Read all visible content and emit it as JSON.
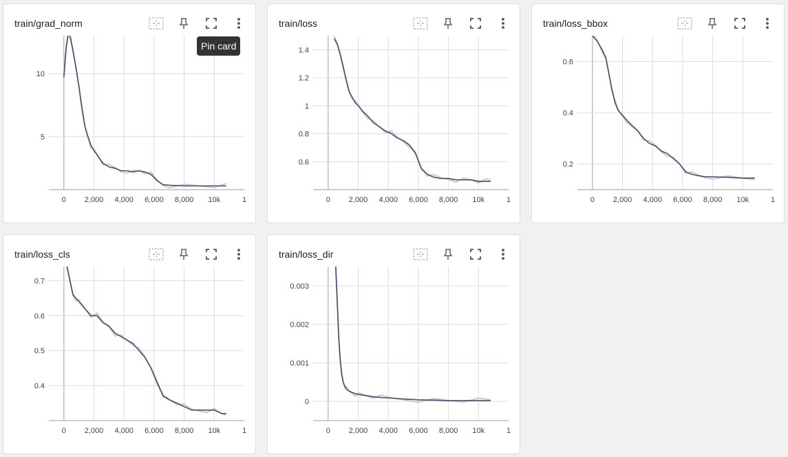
{
  "tooltip": "Pin card",
  "colors": {
    "line": "#425066",
    "line_raw": "#c5cbd6",
    "grid": "#dadce0",
    "axis": "#9e9e9e"
  },
  "icons": [
    "fit-domain-icon",
    "pin-icon",
    "fullscreen-icon",
    "more-vert-icon"
  ],
  "cards": [
    {
      "title": "train/grad_norm",
      "chart_data": {
        "type": "line",
        "x_ticks": [
          "0",
          "2,000",
          "4,000",
          "6,000",
          "8,000",
          "10k",
          "1"
        ],
        "y_ticks": [
          "5",
          "10"
        ],
        "xlim": [
          -1000,
          12000
        ],
        "ylim": [
          0.8,
          13
        ],
        "series": [
          {
            "x": [
              0,
              150,
              300,
              450,
              600,
              800,
              1000,
              1200,
              1400,
              1600,
              1800,
              2000,
              2300,
              2600,
              3000,
              3400,
              3800,
              4200,
              4600,
              5000,
              5400,
              5800,
              6200,
              6600,
              7000,
              8000,
              9000,
              10000,
              10800
            ],
            "y": [
              9.7,
              12.0,
              13.3,
              12.8,
              11.8,
              10.5,
              9.0,
              7.2,
              5.8,
              5.0,
              4.3,
              3.9,
              3.4,
              2.9,
              2.6,
              2.5,
              2.3,
              2.3,
              2.2,
              2.3,
              2.2,
              2.0,
              1.5,
              1.2,
              1.15,
              1.1,
              1.1,
              1.1,
              1.1
            ]
          }
        ]
      }
    },
    {
      "title": "train/loss",
      "chart_data": {
        "type": "line",
        "x_ticks": [
          "0",
          "2,000",
          "4,000",
          "6,000",
          "8,000",
          "10k",
          "1"
        ],
        "y_ticks": [
          "0.6",
          "0.8",
          "1",
          "1.2",
          "1.4"
        ],
        "xlim": [
          -1000,
          12000
        ],
        "ylim": [
          0.4,
          1.5
        ],
        "series": [
          {
            "x": [
              400,
              600,
              800,
              1000,
              1200,
              1400,
              1600,
              1800,
              2000,
              2300,
              2600,
              3000,
              3400,
              3800,
              4200,
              4600,
              5000,
              5400,
              5800,
              6200,
              6600,
              7000,
              7500,
              8000,
              8500,
              9000,
              9500,
              10000,
              10500,
              10800
            ],
            "y": [
              1.48,
              1.44,
              1.37,
              1.28,
              1.18,
              1.1,
              1.06,
              1.02,
              1.0,
              0.96,
              0.93,
              0.88,
              0.85,
              0.82,
              0.8,
              0.77,
              0.75,
              0.72,
              0.66,
              0.55,
              0.51,
              0.49,
              0.48,
              0.48,
              0.47,
              0.47,
              0.47,
              0.46,
              0.46,
              0.46
            ]
          }
        ]
      }
    },
    {
      "title": "train/loss_bbox",
      "chart_data": {
        "type": "line",
        "x_ticks": [
          "0",
          "2,000",
          "4,000",
          "6,000",
          "8,000",
          "10k",
          "1"
        ],
        "y_ticks": [
          "0.2",
          "0.4",
          "0.6"
        ],
        "xlim": [
          -1000,
          12000
        ],
        "ylim": [
          0.1,
          0.7
        ],
        "series": [
          {
            "x": [
              0,
              300,
              500,
              700,
              900,
              1100,
              1300,
              1500,
              1700,
              2000,
              2300,
              2600,
              3000,
              3400,
              3800,
              4200,
              4600,
              5000,
              5400,
              5800,
              6200,
              6600,
              7000,
              7500,
              8000,
              9000,
              10000,
              10800
            ],
            "y": [
              0.7,
              0.68,
              0.66,
              0.64,
              0.61,
              0.55,
              0.49,
              0.44,
              0.41,
              0.39,
              0.37,
              0.35,
              0.33,
              0.3,
              0.28,
              0.27,
              0.25,
              0.24,
              0.22,
              0.2,
              0.17,
              0.16,
              0.155,
              0.15,
              0.15,
              0.148,
              0.145,
              0.145
            ]
          }
        ]
      }
    },
    {
      "title": "train/loss_cls",
      "chart_data": {
        "type": "line",
        "x_ticks": [
          "0",
          "2,000",
          "4,000",
          "6,000",
          "8,000",
          "10k",
          "1"
        ],
        "y_ticks": [
          "0.4",
          "0.5",
          "0.6",
          "0.7"
        ],
        "xlim": [
          -1000,
          12000
        ],
        "ylim": [
          0.3,
          0.74
        ],
        "series": [
          {
            "x": [
              200,
              400,
              600,
              800,
              1000,
              1400,
              1800,
              2200,
              2600,
              3000,
              3400,
              3800,
              4200,
              4600,
              5000,
              5400,
              5800,
              6200,
              6600,
              7000,
              7500,
              8000,
              8500,
              9000,
              9500,
              10000,
              10500,
              10800
            ],
            "y": [
              0.74,
              0.7,
              0.66,
              0.65,
              0.64,
              0.62,
              0.6,
              0.6,
              0.58,
              0.57,
              0.55,
              0.54,
              0.53,
              0.52,
              0.5,
              0.48,
              0.45,
              0.41,
              0.37,
              0.36,
              0.35,
              0.34,
              0.33,
              0.33,
              0.33,
              0.33,
              0.32,
              0.32
            ]
          }
        ]
      }
    },
    {
      "title": "train/loss_dir",
      "chart_data": {
        "type": "line",
        "x_ticks": [
          "0",
          "2,000",
          "4,000",
          "6,000",
          "8,000",
          "10k",
          "1"
        ],
        "y_ticks": [
          "0",
          "0.001",
          "0.002",
          "0.003"
        ],
        "xlim": [
          -1000,
          12000
        ],
        "ylim": [
          -0.0005,
          0.0035
        ],
        "series": [
          {
            "x": [
              500,
              600,
              700,
              800,
              900,
              1000,
              1100,
              1200,
              1400,
              1600,
              1800,
              2000,
              2500,
              3000,
              3500,
              4000,
              5000,
              6000,
              7000,
              8000,
              9000,
              10000,
              10800
            ],
            "y": [
              0.0035,
              0.0026,
              0.0017,
              0.0011,
              0.0007,
              0.0005,
              0.0004,
              0.00032,
              0.00026,
              0.00023,
              0.0002,
              0.00018,
              0.00015,
              0.00012,
              0.0001,
              9e-05,
              6e-05,
              4e-05,
              3e-05,
              2e-05,
              2e-05,
              2e-05,
              2e-05
            ]
          }
        ]
      }
    }
  ]
}
